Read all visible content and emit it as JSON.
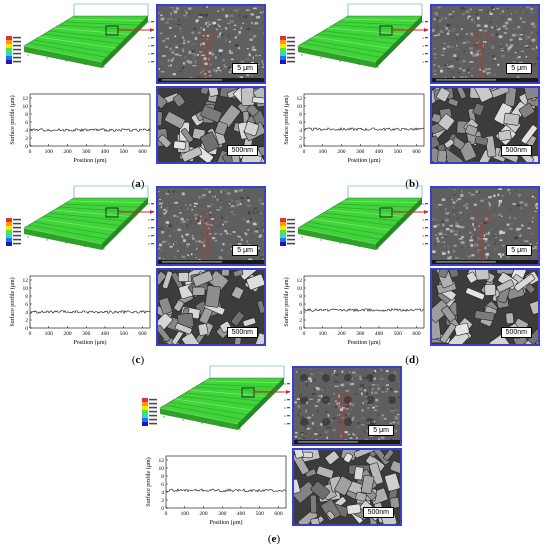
{
  "figure": {
    "panels": [
      {
        "id": "a",
        "label_open": "(",
        "label_letter": "a",
        "label_close": ")",
        "sem_top_scale": "5 μm",
        "sem_bottom_scale": "500nm",
        "profile_ylabel": "Surface profile (μm)",
        "profile_xlabel": "Position (μm)",
        "profile_yticks": [
          "12",
          "10",
          "8",
          "6",
          "4",
          "2",
          "0"
        ],
        "profile_xticks": [
          "0",
          "100",
          "200",
          "300",
          "400",
          "500",
          "600"
        ],
        "profile_level": 4.0
      },
      {
        "id": "b",
        "label_open": "(",
        "label_letter": "b",
        "label_close": ")",
        "sem_top_scale": "5 μm",
        "sem_bottom_scale": "500nm",
        "profile_ylabel": "Surface profile (μm)",
        "profile_xlabel": "Position (μm)",
        "profile_yticks": [
          "12",
          "10",
          "8",
          "6",
          "4",
          "2",
          "0"
        ],
        "profile_xticks": [
          "0",
          "100",
          "200",
          "300",
          "400",
          "500",
          "600"
        ],
        "profile_level": 4.2
      },
      {
        "id": "c",
        "label_open": "(",
        "label_letter": "c",
        "label_close": ")",
        "sem_top_scale": "5 μm",
        "sem_bottom_scale": "500nm",
        "profile_ylabel": "Surface profile (μm)",
        "profile_xlabel": "Position (μm)",
        "profile_yticks": [
          "12",
          "10",
          "8",
          "6",
          "4",
          "2",
          "0"
        ],
        "profile_xticks": [
          "0",
          "100",
          "200",
          "300",
          "400",
          "500",
          "600"
        ],
        "profile_level": 4.0
      },
      {
        "id": "d",
        "label_open": "(",
        "label_letter": "d",
        "label_close": ")",
        "sem_top_scale": "5 μm",
        "sem_bottom_scale": "500nm",
        "profile_ylabel": "Surface profile (μm)",
        "profile_xlabel": "Position (μm)",
        "profile_yticks": [
          "12",
          "10",
          "8",
          "6",
          "4",
          "2",
          "0"
        ],
        "profile_xticks": [
          "0",
          "100",
          "200",
          "300",
          "400",
          "500",
          "600"
        ],
        "profile_level": 4.5
      },
      {
        "id": "e",
        "label_open": "(",
        "label_letter": "e",
        "label_close": ")",
        "sem_top_scale": "5 μm",
        "sem_bottom_scale": "500nm",
        "profile_ylabel": "Surface profile (μm)",
        "profile_xlabel": "Position (μm)",
        "profile_yticks": [
          "12",
          "10",
          "8",
          "6",
          "4",
          "2",
          "0"
        ],
        "profile_xticks": [
          "0",
          "100",
          "200",
          "300",
          "400",
          "500",
          "600"
        ],
        "profile_level": 4.4
      }
    ],
    "colors": {
      "surface_green": "#3fd43a",
      "frame_blue": "#3a3fd0",
      "marker_red": "#e02020",
      "sem_gray": "#6a6a6a"
    }
  }
}
